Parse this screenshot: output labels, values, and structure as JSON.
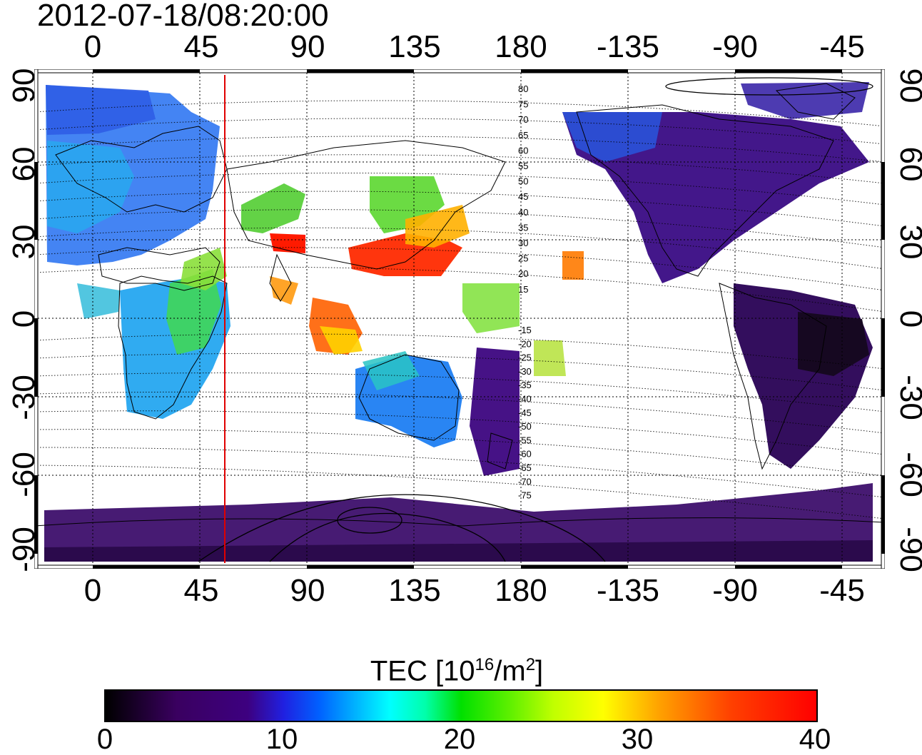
{
  "title": "2012-07-18/08:20:00",
  "lon_ticks": [
    "0",
    "45",
    "90",
    "135",
    "180",
    "-135",
    "-90",
    "-45"
  ],
  "lat_ticks": [
    "90",
    "60",
    "30",
    "0",
    "-30",
    "-60",
    "-90"
  ],
  "contour_labels": [
    "80",
    "75",
    "70",
    "65",
    "60",
    "55",
    "50",
    "45",
    "40",
    "35",
    "30",
    "25",
    "20",
    "15",
    "-15",
    "-20",
    "-25",
    "-30",
    "-35",
    "-40",
    "-45",
    "-50",
    "-55",
    "-60",
    "-65",
    "-70",
    "-75"
  ],
  "colorbar": {
    "label": "TEC  [10",
    "label_exp": "16",
    "label_unit": "/m",
    "label_unit_exp": "2",
    "label_close": "]",
    "ticks": [
      "0",
      "10",
      "20",
      "30",
      "40"
    ],
    "min": 0,
    "max": 40
  },
  "colors": {
    "marker_line": "#e00000",
    "coast": "#000000",
    "grid": "#000000"
  },
  "marker_longitude": 55
}
